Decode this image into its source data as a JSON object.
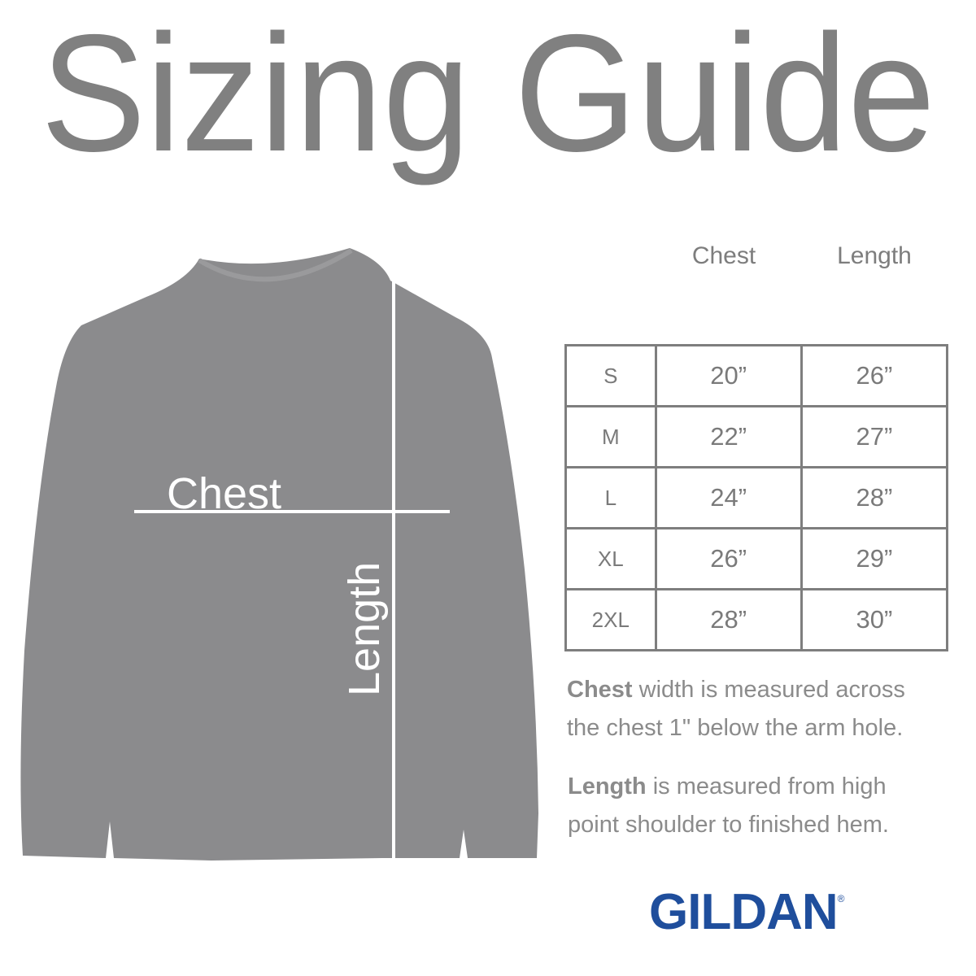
{
  "title": "Sizing Guide",
  "diagram": {
    "chest_label": "Chest",
    "length_label": "Length",
    "garment_color": "#8b8b8d"
  },
  "table": {
    "headers": [
      "Chest",
      "Length"
    ],
    "rows": [
      {
        "size": "S",
        "chest": "20”",
        "length": "26”"
      },
      {
        "size": "M",
        "chest": "22”",
        "length": "27”"
      },
      {
        "size": "L",
        "chest": "24”",
        "length": "28”"
      },
      {
        "size": "XL",
        "chest": "26”",
        "length": "29”"
      },
      {
        "size": "2XL",
        "chest": "28”",
        "length": "30”"
      }
    ]
  },
  "notes": {
    "chest_bold": "Chest",
    "chest_line1": " width is measured across",
    "chest_line2": "the chest 1\" below the arm hole.",
    "length_bold": "Length",
    "length_line1": " is measured from high",
    "length_line2": "point shoulder to finished hem."
  },
  "brand": {
    "name": "GILDAN",
    "mark": "®",
    "color": "#1f4e9c"
  }
}
